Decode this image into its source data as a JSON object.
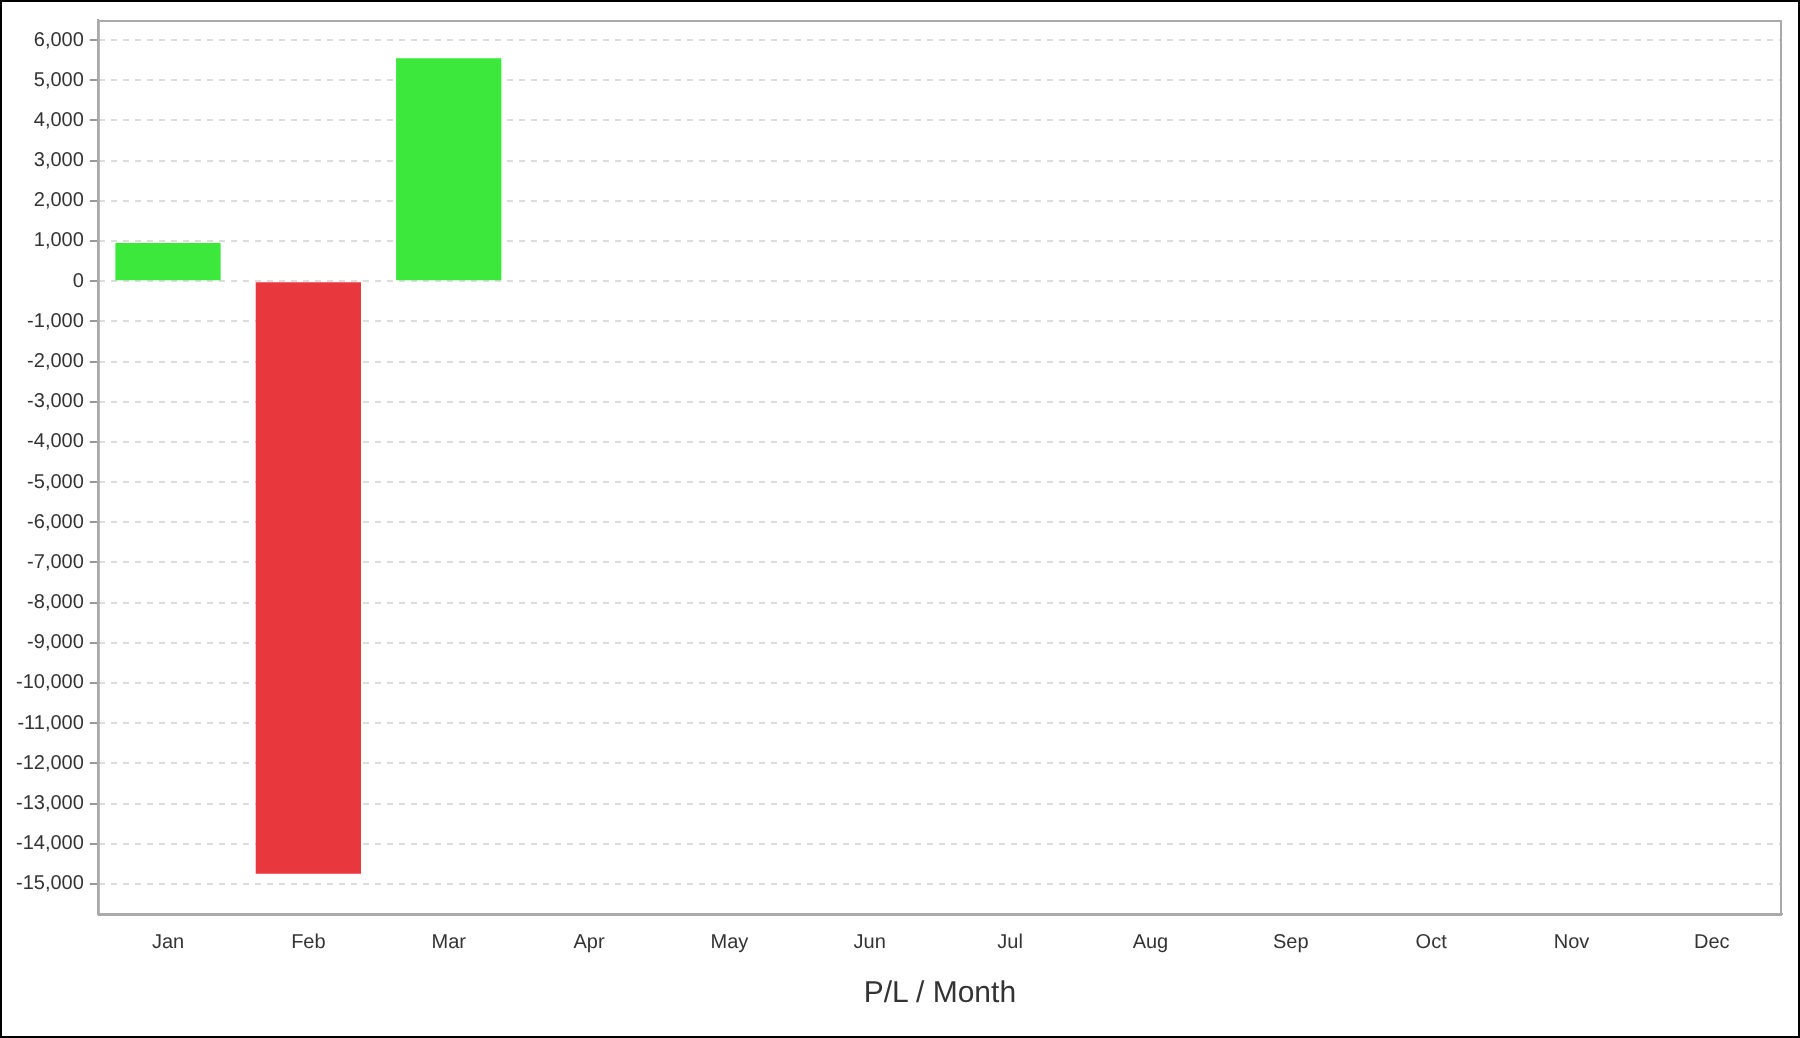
{
  "chart_data": {
    "type": "bar",
    "xlabel": "P/L / Month",
    "categories": [
      "Jan",
      "Feb",
      "Mar",
      "Apr",
      "May",
      "Jun",
      "Jul",
      "Aug",
      "Sep",
      "Oct",
      "Nov",
      "Dec"
    ],
    "values": [
      950,
      -14750,
      5550,
      null,
      null,
      null,
      null,
      null,
      null,
      null,
      null,
      null
    ],
    "colors": [
      "#3de83d",
      "#e8383d",
      "#3de83d",
      "#3de83d",
      "#3de83d",
      "#3de83d",
      "#3de83d",
      "#3de83d",
      "#3de83d",
      "#3de83d",
      "#3de83d",
      "#3de83d"
    ],
    "ylim": [
      -15750,
      6500
    ],
    "yticks": [
      {
        "value": 6000,
        "label": "6,000"
      },
      {
        "value": 5000,
        "label": "5,000"
      },
      {
        "value": 4000,
        "label": "4,000"
      },
      {
        "value": 3000,
        "label": "3,000"
      },
      {
        "value": 2000,
        "label": "2,000"
      },
      {
        "value": 1000,
        "label": "1,000"
      },
      0,
      {
        "value": -1000,
        "label": "-1,000"
      },
      {
        "value": -2000,
        "label": "-2,000"
      },
      {
        "value": -3000,
        "label": "-3,000"
      },
      {
        "value": -4000,
        "label": "-4,000"
      },
      {
        "value": -5000,
        "label": "-5,000"
      },
      {
        "value": -6000,
        "label": "-6,000"
      },
      {
        "value": -7000,
        "label": "-7,000"
      },
      {
        "value": -8000,
        "label": "-8,000"
      },
      {
        "value": -9000,
        "label": "-9,000"
      },
      {
        "value": -10000,
        "label": "-10,000"
      },
      {
        "value": -11000,
        "label": "-11,000"
      },
      {
        "value": -12000,
        "label": "-12,000"
      },
      {
        "value": -13000,
        "label": "-13,000"
      },
      {
        "value": -14000,
        "label": "-14,000"
      },
      {
        "value": -15000,
        "label": "-15,000"
      }
    ],
    "grid": "y",
    "legend": false
  }
}
